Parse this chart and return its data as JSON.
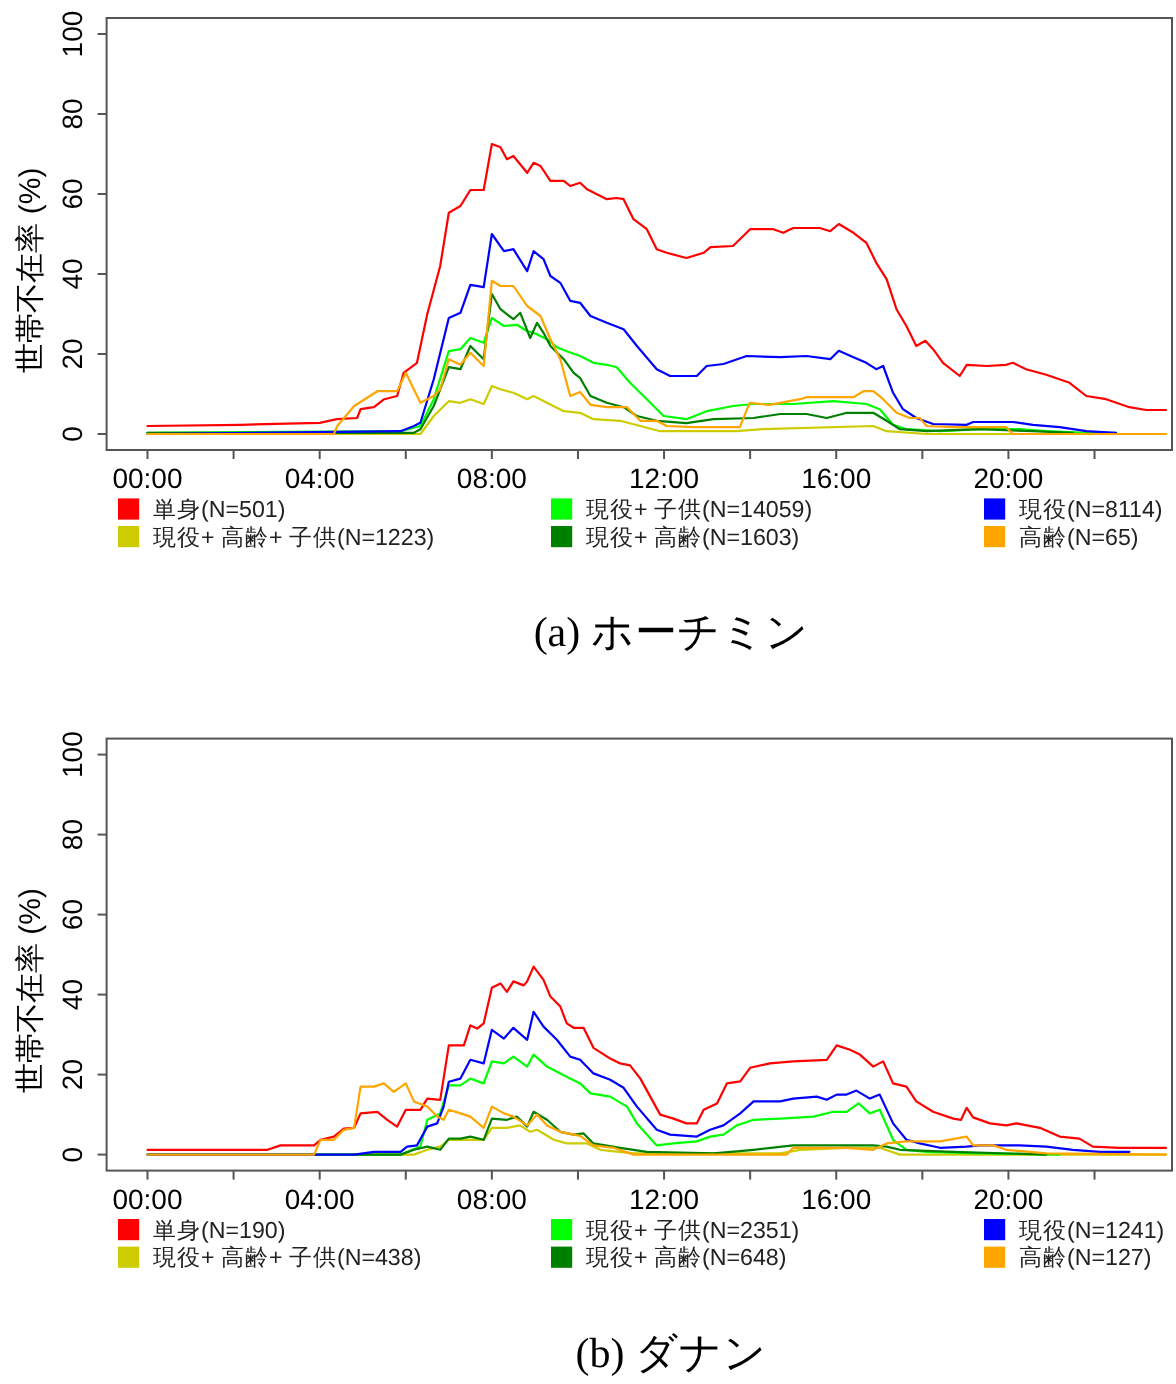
{
  "chart_data": [
    {
      "type": "line",
      "title": "(a) ホーチミン",
      "ylabel": "世帯不在率 (%)",
      "xlim": [
        -0.95,
        23.8
      ],
      "xticks": [
        {
          "value": 0,
          "label": "00:00"
        },
        {
          "value": 2,
          "label": null
        },
        {
          "value": 4,
          "label": "04:00"
        },
        {
          "value": 6,
          "label": null
        },
        {
          "value": 8,
          "label": "08:00"
        },
        {
          "value": 10,
          "label": null
        },
        {
          "value": 12,
          "label": "12:00"
        },
        {
          "value": 14,
          "label": null
        },
        {
          "value": 16,
          "label": "16:00"
        },
        {
          "value": 18,
          "label": null
        },
        {
          "value": 20,
          "label": "20:00"
        },
        {
          "value": 22,
          "label": null
        }
      ],
      "ylim": [
        -4,
        104
      ],
      "yticks": [
        0,
        20,
        40,
        60,
        80,
        100
      ],
      "legend": "bottom",
      "series": [
        {
          "name": "単身(N=501)",
          "color": "#ff0000",
          "x": [
            0,
            2.17,
            4.0,
            4.4,
            4.87,
            4.95,
            5.26,
            5.5,
            5.8,
            5.95,
            6.26,
            6.5,
            6.8,
            7.0,
            7.27,
            7.5,
            7.81,
            8.0,
            8.2,
            8.35,
            8.5,
            8.82,
            8.97,
            9.13,
            9.36,
            9.67,
            9.82,
            10.05,
            10.21,
            10.67,
            10.9,
            11.06,
            11.29,
            11.6,
            11.83,
            12.06,
            12.52,
            12.92,
            13.08,
            13.6,
            14.0,
            14.54,
            14.77,
            15.0,
            15.62,
            15.86,
            16.06,
            16.4,
            16.7,
            16.93,
            17.17,
            17.4,
            17.63,
            17.86,
            18.07,
            18.25,
            18.48,
            18.87,
            19.03,
            19.49,
            19.95,
            20.1,
            20.41,
            20.88,
            21.42,
            21.81,
            22.27,
            22.81,
            23.2,
            23.66
          ],
          "values": [
            2,
            2.3,
            2.8,
            3.7,
            4,
            6.2,
            6.7,
            8.7,
            9.5,
            15.3,
            17.8,
            30,
            42,
            55.3,
            57,
            61,
            61,
            72.5,
            71.7,
            68.7,
            69.5,
            65.3,
            67.8,
            67,
            63.3,
            63.3,
            62,
            62.8,
            61.2,
            58.7,
            59,
            58.7,
            53.7,
            51.2,
            46.2,
            45.3,
            44,
            45.3,
            46.7,
            47,
            51.2,
            51.2,
            50.3,
            51.5,
            51.5,
            50.7,
            52.5,
            50.3,
            47.8,
            42.8,
            38.7,
            31.2,
            27,
            22,
            23.3,
            21.2,
            17.8,
            14.5,
            17.3,
            17,
            17.3,
            17.8,
            16.2,
            14.8,
            12.8,
            9.5,
            8.7,
            6.7,
            6,
            6
          ]
        },
        {
          "name": "現役+ 高齢+ 子供(N=1223)",
          "color": "#cccc00",
          "x": [
            0,
            6.34,
            6.65,
            7.0,
            7.27,
            7.5,
            7.81,
            8.0,
            8.2,
            8.5,
            8.82,
            8.97,
            9.28,
            9.67,
            10.05,
            10.36,
            10.98,
            11.45,
            11.91,
            13.68,
            14.3,
            16.86,
            17.17,
            18.1,
            23.66
          ],
          "values": [
            0,
            0,
            4.5,
            8.2,
            7.8,
            8.7,
            7.5,
            12,
            11.2,
            10.3,
            8.7,
            9.5,
            7.8,
            5.7,
            5.3,
            3.7,
            3.3,
            2,
            0.7,
            0.7,
            1.2,
            2,
            0.7,
            0,
            0
          ]
        },
        {
          "name": "現役+ 子供(N=14059)",
          "color": "#00ff00",
          "x": [
            0,
            5.88,
            6.34,
            6.65,
            7.0,
            7.27,
            7.5,
            7.81,
            8.0,
            8.28,
            8.58,
            8.82,
            8.97,
            9.28,
            9.51,
            9.74,
            10.05,
            10.36,
            10.67,
            10.9,
            11.21,
            11.6,
            11.99,
            12.52,
            12.99,
            13.6,
            14.08,
            15.0,
            15.93,
            16.7,
            17.01,
            17.32,
            17.63,
            18.41,
            19.34,
            20.25,
            20.88,
            21.81,
            22.5
          ],
          "values": [
            0.3,
            0.7,
            2,
            8.7,
            20.7,
            21.2,
            24,
            22.8,
            29,
            27,
            27.3,
            25.7,
            25.3,
            23.7,
            21.7,
            20.7,
            19.5,
            17.8,
            17.3,
            16.7,
            12.8,
            8.7,
            4.5,
            3.7,
            5.7,
            7,
            7.5,
            7.5,
            8.2,
            7.5,
            6.2,
            2.3,
            1.2,
            0.7,
            1.2,
            1.2,
            0.7,
            0.3,
            0.3
          ]
        },
        {
          "name": "現役+ 高齢(N=1603)",
          "color": "#008000",
          "x": [
            0,
            6.19,
            6.34,
            6.65,
            7.0,
            7.27,
            7.5,
            7.81,
            8.0,
            8.2,
            8.5,
            8.66,
            8.89,
            9.05,
            9.2,
            9.36,
            9.67,
            9.9,
            10.05,
            10.29,
            10.67,
            11.06,
            11.37,
            11.83,
            12.52,
            13.15,
            14.08,
            14.7,
            15.31,
            15.78,
            16.25,
            16.86,
            17.17,
            17.48,
            18.1,
            19.34,
            20.57,
            21.5
          ],
          "values": [
            0.3,
            0.3,
            1.2,
            7,
            16.7,
            16.2,
            22,
            18.7,
            35,
            31.2,
            28.7,
            30.3,
            24,
            27.8,
            25.3,
            22,
            18.7,
            15.3,
            14,
            9.5,
            7.8,
            6.7,
            4.5,
            3.3,
            2.7,
            3.7,
            4,
            5,
            5,
            4,
            5.3,
            5.3,
            3.3,
            1.2,
            0.7,
            1.2,
            0.7,
            0.3
          ]
        },
        {
          "name": "現役(N=8114)",
          "color": "#0000ff",
          "x": [
            0,
            5.88,
            6.19,
            6.34,
            6.65,
            7.0,
            7.27,
            7.5,
            7.81,
            8.0,
            8.28,
            8.5,
            8.82,
            8.97,
            9.2,
            9.36,
            9.59,
            9.82,
            10.05,
            10.29,
            10.67,
            11.06,
            11.37,
            11.83,
            12.14,
            12.76,
            12.99,
            13.38,
            13.92,
            14.7,
            15.31,
            15.86,
            16.06,
            16.4,
            16.7,
            16.93,
            17.09,
            17.32,
            17.55,
            17.86,
            18.25,
            19.03,
            19.18,
            20.1,
            20.57,
            21.19,
            21.81,
            22.5
          ],
          "values": [
            0,
            0.7,
            2,
            2.8,
            13.7,
            29,
            30.3,
            37.3,
            36.7,
            50,
            45.7,
            46.2,
            40.7,
            45.7,
            43.7,
            39.5,
            37.8,
            33.3,
            32.8,
            29.5,
            27.8,
            26.2,
            22,
            16.2,
            14.5,
            14.5,
            17,
            17.5,
            19.5,
            19.2,
            19.5,
            18.7,
            20.8,
            19.2,
            17.8,
            16.2,
            17,
            10.3,
            6.2,
            4,
            2.5,
            2.3,
            3,
            3,
            2.3,
            1.7,
            0.7,
            0.3
          ]
        },
        {
          "name": "高齢(N=65)",
          "color": "#ffa500",
          "x": [
            0,
            4.33,
            4.41,
            4.8,
            5.34,
            5.8,
            6.0,
            6.34,
            6.65,
            6.8,
            7.0,
            7.27,
            7.5,
            7.81,
            8.0,
            8.2,
            8.5,
            8.82,
            9.13,
            9.36,
            9.59,
            9.82,
            10.05,
            10.29,
            10.67,
            11.14,
            11.45,
            11.83,
            12.06,
            12.68,
            13.76,
            13.99,
            14.45,
            15.16,
            15.31,
            16.4,
            16.63,
            16.86,
            17.09,
            17.4,
            17.71,
            17.94,
            18.1,
            18.72,
            19.95,
            20.1,
            23.66
          ],
          "values": [
            0,
            0,
            2,
            7,
            10.7,
            10.7,
            15.3,
            7.8,
            9.5,
            11.2,
            18.7,
            17.3,
            20.3,
            17,
            38.3,
            37,
            37,
            32,
            29.5,
            23.7,
            18.7,
            9.5,
            10.5,
            7.3,
            6.7,
            6.7,
            3.3,
            3.3,
            2,
            1.7,
            1.7,
            7.8,
            7.3,
            8.7,
            9.2,
            9.2,
            10.7,
            10.7,
            8.7,
            5.3,
            4,
            4,
            2,
            1.7,
            1.7,
            0,
            0
          ]
        }
      ]
    },
    {
      "type": "line",
      "title": "(b) ダナン",
      "ylabel": "世帯不在率 (%)",
      "xlim": [
        -0.95,
        23.8
      ],
      "xticks": [
        {
          "value": 0,
          "label": "00:00"
        },
        {
          "value": 2,
          "label": null
        },
        {
          "value": 4,
          "label": "04:00"
        },
        {
          "value": 6,
          "label": null
        },
        {
          "value": 8,
          "label": "08:00"
        },
        {
          "value": 10,
          "label": null
        },
        {
          "value": 12,
          "label": "12:00"
        },
        {
          "value": 14,
          "label": null
        },
        {
          "value": 16,
          "label": "16:00"
        },
        {
          "value": 18,
          "label": null
        },
        {
          "value": 20,
          "label": "20:00"
        },
        {
          "value": 22,
          "label": null
        }
      ],
      "ylim": [
        -4,
        104
      ],
      "yticks": [
        0,
        20,
        40,
        60,
        80,
        100
      ],
      "legend": "bottom",
      "series": [
        {
          "name": "単身(N=190)",
          "color": "#ff0000",
          "x": [
            0,
            2.79,
            3.09,
            3.87,
            4.02,
            4.33,
            4.56,
            4.8,
            4.95,
            5.34,
            5.57,
            5.8,
            6.0,
            6.34,
            6.5,
            6.8,
            7.0,
            7.35,
            7.5,
            7.66,
            7.81,
            8.0,
            8.2,
            8.35,
            8.5,
            8.74,
            8.82,
            8.97,
            9.2,
            9.36,
            9.59,
            9.74,
            9.9,
            10.13,
            10.36,
            10.75,
            10.98,
            11.21,
            11.45,
            11.68,
            11.91,
            12.22,
            12.52,
            12.76,
            12.92,
            13.23,
            13.46,
            13.77,
            14.0,
            14.46,
            15.0,
            15.78,
            16.01,
            16.32,
            16.55,
            16.86,
            17.09,
            17.32,
            17.63,
            17.86,
            18.25,
            18.72,
            18.9,
            19.03,
            19.18,
            19.57,
            19.95,
            20.19,
            20.73,
            21.19,
            21.65,
            21.96,
            22.58,
            23.66
          ],
          "values": [
            1.2,
            1.2,
            2.3,
            2.3,
            3.7,
            4.5,
            6.5,
            6.7,
            10.3,
            10.7,
            8.7,
            7,
            11.2,
            11.2,
            14,
            13.7,
            27.3,
            27.3,
            32.3,
            31.5,
            32.8,
            41.7,
            42.8,
            40.7,
            43.3,
            42.3,
            43.3,
            47,
            43.7,
            39.5,
            37,
            32.8,
            31.7,
            31.7,
            26.7,
            24,
            22.8,
            22.3,
            19,
            14.5,
            10,
            9,
            7.8,
            7.8,
            11.2,
            12.8,
            17.8,
            18.3,
            21.7,
            22.8,
            23.3,
            23.7,
            27.3,
            26.2,
            25,
            22,
            23.3,
            17.8,
            17,
            13.3,
            10.7,
            9,
            8.7,
            11.7,
            9.3,
            7.8,
            7.3,
            7.8,
            6.7,
            4.5,
            4,
            2,
            1.7,
            1.7
          ]
        },
        {
          "name": "現役+ 高齢+ 子供(N=438)",
          "color": "#cccc00",
          "x": [
            0,
            6.19,
            6.5,
            6.8,
            7.0,
            7.42,
            7.81,
            8.0,
            8.35,
            8.66,
            8.89,
            9.05,
            9.44,
            9.74,
            10.21,
            10.52,
            11.29,
            14.7,
            15.16,
            16.24,
            17.01,
            17.48,
            23.66
          ],
          "values": [
            0,
            0,
            1.2,
            2,
            3.7,
            3.7,
            3.7,
            6.7,
            6.7,
            7.3,
            5.7,
            6.2,
            3.7,
            2.8,
            2.8,
            1.2,
            0.3,
            0.3,
            1.2,
            1.7,
            1.7,
            0,
            0
          ]
        },
        {
          "name": "現役+ 子供(N=2351)",
          "color": "#00ff00",
          "x": [
            0,
            5.88,
            6.34,
            6.5,
            6.8,
            7.0,
            7.27,
            7.5,
            7.81,
            8.0,
            8.28,
            8.5,
            8.82,
            8.97,
            9.28,
            9.59,
            9.82,
            10.05,
            10.29,
            10.75,
            11.14,
            11.37,
            11.83,
            12.22,
            12.76,
            13.07,
            13.38,
            13.69,
            14.08,
            14.7,
            15.47,
            15.93,
            16.24,
            16.52,
            16.78,
            17.01,
            17.32,
            17.63,
            18.1,
            19.34,
            21.19
          ],
          "values": [
            0,
            0,
            2,
            8.7,
            10.3,
            17.3,
            17.3,
            19,
            17.8,
            23.3,
            22.8,
            24.5,
            22,
            25,
            22,
            20.3,
            19,
            17.8,
            15.3,
            14.5,
            12,
            7.8,
            2.3,
            2.8,
            3.3,
            4.5,
            5,
            7.3,
            8.7,
            9,
            9.5,
            10.7,
            10.7,
            12.8,
            10.3,
            11.2,
            3.7,
            1.2,
            0.7,
            0.3,
            0
          ]
        },
        {
          "name": "現役+ 高齢(N=648)",
          "color": "#008000",
          "x": [
            0,
            5.88,
            6.19,
            6.5,
            6.8,
            7.0,
            7.27,
            7.5,
            7.81,
            8.0,
            8.35,
            8.58,
            8.82,
            8.97,
            9.28,
            9.59,
            9.9,
            10.13,
            10.36,
            10.98,
            11.6,
            13.15,
            14.08,
            15.0,
            16.86,
            17.17,
            17.48,
            18.72,
            20.88
          ],
          "values": [
            0,
            0,
            1.2,
            2,
            1.2,
            4,
            4,
            4.5,
            3.7,
            9,
            8.7,
            9.5,
            7,
            10.7,
            8.7,
            5.7,
            5,
            5.3,
            2.8,
            1.7,
            0.7,
            0.3,
            1.2,
            2.3,
            2.3,
            2,
            1.2,
            0.7,
            0
          ]
        },
        {
          "name": "現役(N=1241)",
          "color": "#0000ff",
          "x": [
            0,
            4.8,
            5.26,
            5.88,
            6.03,
            6.26,
            6.5,
            6.73,
            6.88,
            7.0,
            7.27,
            7.5,
            7.81,
            8.0,
            8.28,
            8.5,
            8.82,
            8.97,
            9.2,
            9.51,
            9.82,
            10.05,
            10.36,
            10.75,
            11.06,
            11.37,
            11.83,
            12.14,
            12.76,
            13.07,
            13.38,
            13.77,
            14.08,
            14.7,
            15.0,
            15.55,
            15.78,
            16.01,
            16.24,
            16.47,
            16.78,
            17.01,
            17.32,
            17.63,
            17.94,
            18.41,
            19.03,
            19.34,
            20.25,
            20.88,
            21.5,
            22.12,
            22.81
          ],
          "values": [
            0,
            0,
            0.7,
            0.7,
            2,
            2.3,
            7,
            7.8,
            12,
            18.2,
            19,
            23.7,
            22.8,
            31.2,
            29,
            31.7,
            28.7,
            35.7,
            32,
            28.7,
            24.5,
            23.7,
            20.3,
            18.7,
            16.7,
            12,
            6.2,
            5,
            4.5,
            6.2,
            7.3,
            10.3,
            13.3,
            13.3,
            14,
            14.5,
            13.7,
            15,
            15,
            16,
            14,
            15,
            7.8,
            3.7,
            2.8,
            1.7,
            2,
            2.3,
            2.3,
            2,
            1.2,
            0.7,
            0.7
          ]
        },
        {
          "name": "高齢(N=127)",
          "color": "#ffa500",
          "x": [
            0,
            3.87,
            4.02,
            4.33,
            4.56,
            4.8,
            4.95,
            5.26,
            5.49,
            5.72,
            6.0,
            6.19,
            6.5,
            6.73,
            6.88,
            7.0,
            7.27,
            7.5,
            7.81,
            8.0,
            8.28,
            8.5,
            8.82,
            9.05,
            9.28,
            9.59,
            10.05,
            10.36,
            10.83,
            11.29,
            14.85,
            15.0,
            16.24,
            16.86,
            17.17,
            17.63,
            18.41,
            19.03,
            19.18,
            19.65,
            19.95,
            20.88,
            23.66
          ],
          "values": [
            0,
            0,
            3.7,
            3.7,
            6.2,
            6.7,
            17,
            17,
            17.8,
            15.7,
            17.8,
            13.3,
            12,
            9.5,
            8.7,
            11.2,
            10.3,
            9.5,
            6.7,
            12,
            10.3,
            9.5,
            7.3,
            10,
            7.3,
            5.7,
            4.7,
            2.3,
            1.7,
            0,
            0,
            1.7,
            1.7,
            1.2,
            2.8,
            3.3,
            3.3,
            4.5,
            2.3,
            2.3,
            1.2,
            0.3,
            0
          ]
        }
      ]
    }
  ]
}
